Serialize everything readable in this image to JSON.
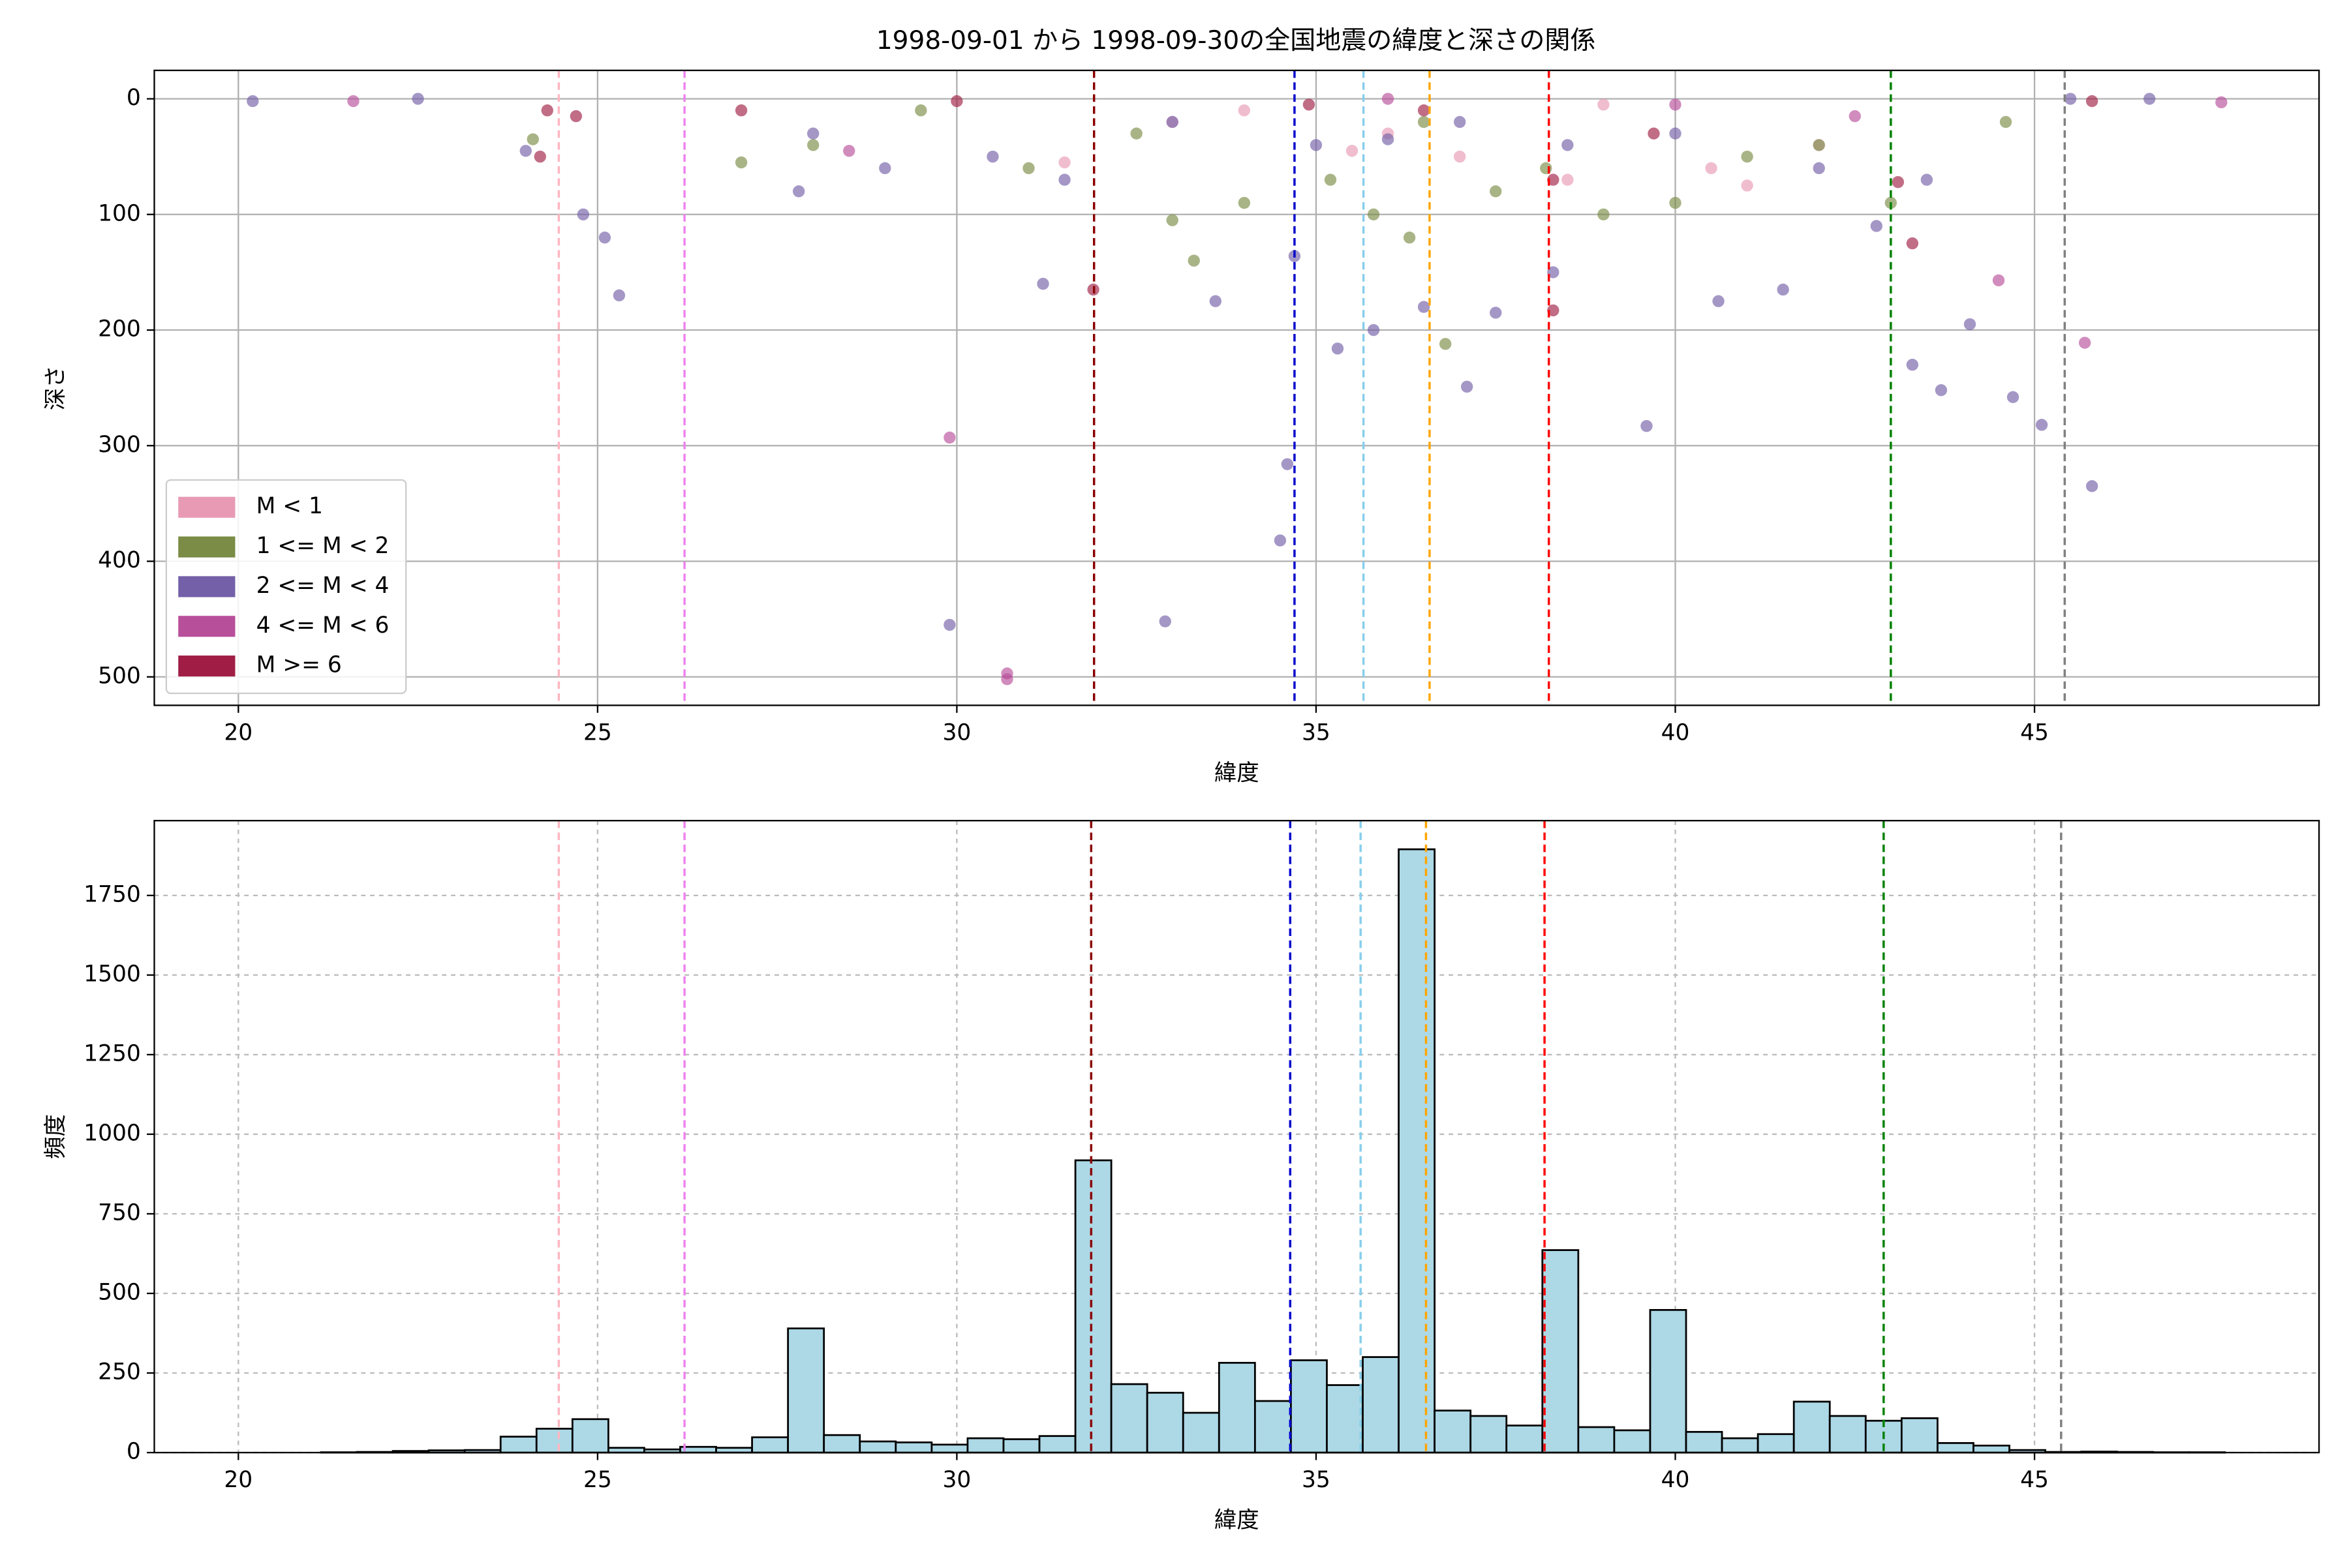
{
  "chart_data": [
    {
      "type": "scatter",
      "title": "1998-09-01 から 1998-09-30の全国地震の緯度と深さの関係",
      "x_label": "緯度",
      "y_label": "深さ",
      "xlim": [
        18.83,
        48.96
      ],
      "xticks": [
        20,
        25,
        30,
        35,
        40,
        45
      ],
      "ylim": [
        524.6,
        -24.6
      ],
      "yticks": [
        0,
        100,
        200,
        300,
        400,
        500
      ],
      "grid": true,
      "grid_style": "solid",
      "legend": "lower left",
      "vlines": [
        {
          "x": 24.46,
          "color": "#ffb6c1"
        },
        {
          "x": 26.21,
          "color": "#ee82ee"
        },
        {
          "x": 31.91,
          "color": "#8b0000"
        },
        {
          "x": 34.7,
          "color": "#0000cd"
        },
        {
          "x": 35.66,
          "color": "#87ceeb"
        },
        {
          "x": 36.58,
          "color": "#ffa500"
        },
        {
          "x": 38.24,
          "color": "#ff0000"
        },
        {
          "x": 43.0,
          "color": "#008000"
        },
        {
          "x": 45.42,
          "color": "#808080"
        }
      ],
      "series": [
        {
          "name": "M < 1",
          "color": "#e89ab5",
          "x": [
            33,
            34,
            36,
            37,
            38.5,
            40.5,
            42,
            31.5,
            35.5,
            39,
            41
          ],
          "values": [
            20,
            10,
            30,
            50,
            70,
            60,
            40,
            55,
            45,
            5,
            75
          ]
        },
        {
          "name": "1 <= M < 2",
          "color": "#7a8c45",
          "x": [
            24.1,
            28,
            31,
            32.5,
            33.3,
            34,
            35.2,
            35.8,
            36.3,
            36.8,
            37.5,
            38.2,
            39,
            40,
            41,
            42,
            43,
            44.6,
            27,
            29.5,
            36.5,
            33
          ],
          "values": [
            35,
            40,
            60,
            30,
            140,
            90,
            70,
            100,
            120,
            212,
            80,
            60,
            100,
            90,
            50,
            40,
            90,
            20,
            55,
            10,
            20,
            105
          ]
        },
        {
          "name": "2 <= M < 4",
          "color": "#7360a8",
          "x": [
            20.2,
            22.5,
            24.8,
            25.1,
            25.3,
            27.8,
            29,
            29.9,
            30.5,
            31.2,
            32.9,
            33.6,
            34.5,
            34.6,
            34.7,
            35.3,
            35.8,
            36.5,
            37.1,
            37.5,
            38.3,
            39.6,
            40.6,
            41.5,
            42.8,
            43.3,
            43.7,
            44.1,
            44.7,
            45.1,
            45.8,
            24,
            28,
            31.5,
            33,
            35,
            36,
            37,
            38.5,
            40,
            42,
            43.5,
            45.5,
            46.6
          ],
          "values": [
            2,
            0,
            100,
            120,
            170,
            80,
            60,
            455,
            50,
            160,
            452,
            175,
            382,
            316,
            136,
            216,
            200,
            180,
            249,
            185,
            150,
            283,
            175,
            165,
            110,
            230,
            252,
            195,
            258,
            282,
            335,
            45,
            30,
            70,
            20,
            40,
            35,
            20,
            40,
            30,
            60,
            70,
            0,
            0
          ]
        },
        {
          "name": "4 <= M < 6",
          "color": "#b84f9b",
          "x": [
            21.6,
            28.5,
            29.9,
            30.7,
            30.7,
            45.7,
            44.5,
            47.6,
            36,
            40,
            42.5
          ],
          "values": [
            2,
            45,
            293,
            497,
            502,
            211,
            157,
            3,
            0,
            5,
            15
          ]
        },
        {
          "name": "M >= 6",
          "color": "#a01e45",
          "x": [
            24.3,
            24.7,
            24.2,
            27,
            30,
            31.9,
            34.9,
            36.5,
            38.3,
            38.3,
            39.7,
            43.3,
            43.1,
            45.8
          ],
          "values": [
            10,
            15,
            50,
            10,
            2,
            165,
            5,
            10,
            183,
            70,
            30,
            125,
            72,
            2
          ]
        }
      ]
    },
    {
      "type": "histogram",
      "x_label": "緯度",
      "y_label": "頻度",
      "xlim": [
        18.83,
        48.96
      ],
      "xticks": [
        20,
        25,
        30,
        35,
        40,
        45
      ],
      "ylim": [
        0,
        1985
      ],
      "yticks": [
        0,
        250,
        500,
        750,
        1000,
        1250,
        1500,
        1750
      ],
      "grid": true,
      "grid_style": "dashed",
      "color": "#add8e6",
      "edgecolor": "#000000",
      "vlines": [
        {
          "x": 24.46,
          "color": "#ffb6c1"
        },
        {
          "x": 26.21,
          "color": "#ee82ee"
        },
        {
          "x": 31.87,
          "color": "#8b0000"
        },
        {
          "x": 34.64,
          "color": "#0000cd"
        },
        {
          "x": 35.62,
          "color": "#87ceeb"
        },
        {
          "x": 36.53,
          "color": "#ffa500"
        },
        {
          "x": 38.18,
          "color": "#ff0000"
        },
        {
          "x": 42.9,
          "color": "#008000"
        },
        {
          "x": 45.37,
          "color": "#808080"
        }
      ],
      "bins": [
        20.15,
        20.65,
        21.15,
        21.65,
        22.15,
        22.65,
        23.15,
        23.65,
        24.15,
        24.65,
        25.15,
        25.65,
        26.15,
        26.65,
        27.15,
        27.65,
        28.15,
        28.65,
        29.15,
        29.65,
        30.15,
        30.65,
        31.15,
        31.65,
        32.15,
        32.65,
        33.15,
        33.65,
        34.15,
        34.65,
        35.15,
        35.65,
        36.15,
        36.65,
        37.15,
        37.65,
        38.15,
        38.65,
        39.15,
        39.65,
        40.15,
        40.65,
        41.15,
        41.65,
        42.15,
        42.65,
        43.15,
        43.65,
        44.15,
        44.65,
        45.15,
        45.65,
        46.15,
        46.65,
        47.15,
        47.65
      ],
      "counts": [
        0,
        0,
        1,
        2,
        5,
        7,
        8,
        50,
        75,
        105,
        15,
        10,
        18,
        15,
        48,
        390,
        55,
        35,
        32,
        25,
        45,
        42,
        52,
        918,
        215,
        188,
        125,
        282,
        162,
        290,
        212,
        300,
        1895,
        132,
        115,
        85,
        636,
        80,
        70,
        448,
        65,
        45,
        58,
        160,
        115,
        100,
        108,
        30,
        22,
        8,
        2,
        3,
        2,
        1,
        1
      ]
    }
  ]
}
